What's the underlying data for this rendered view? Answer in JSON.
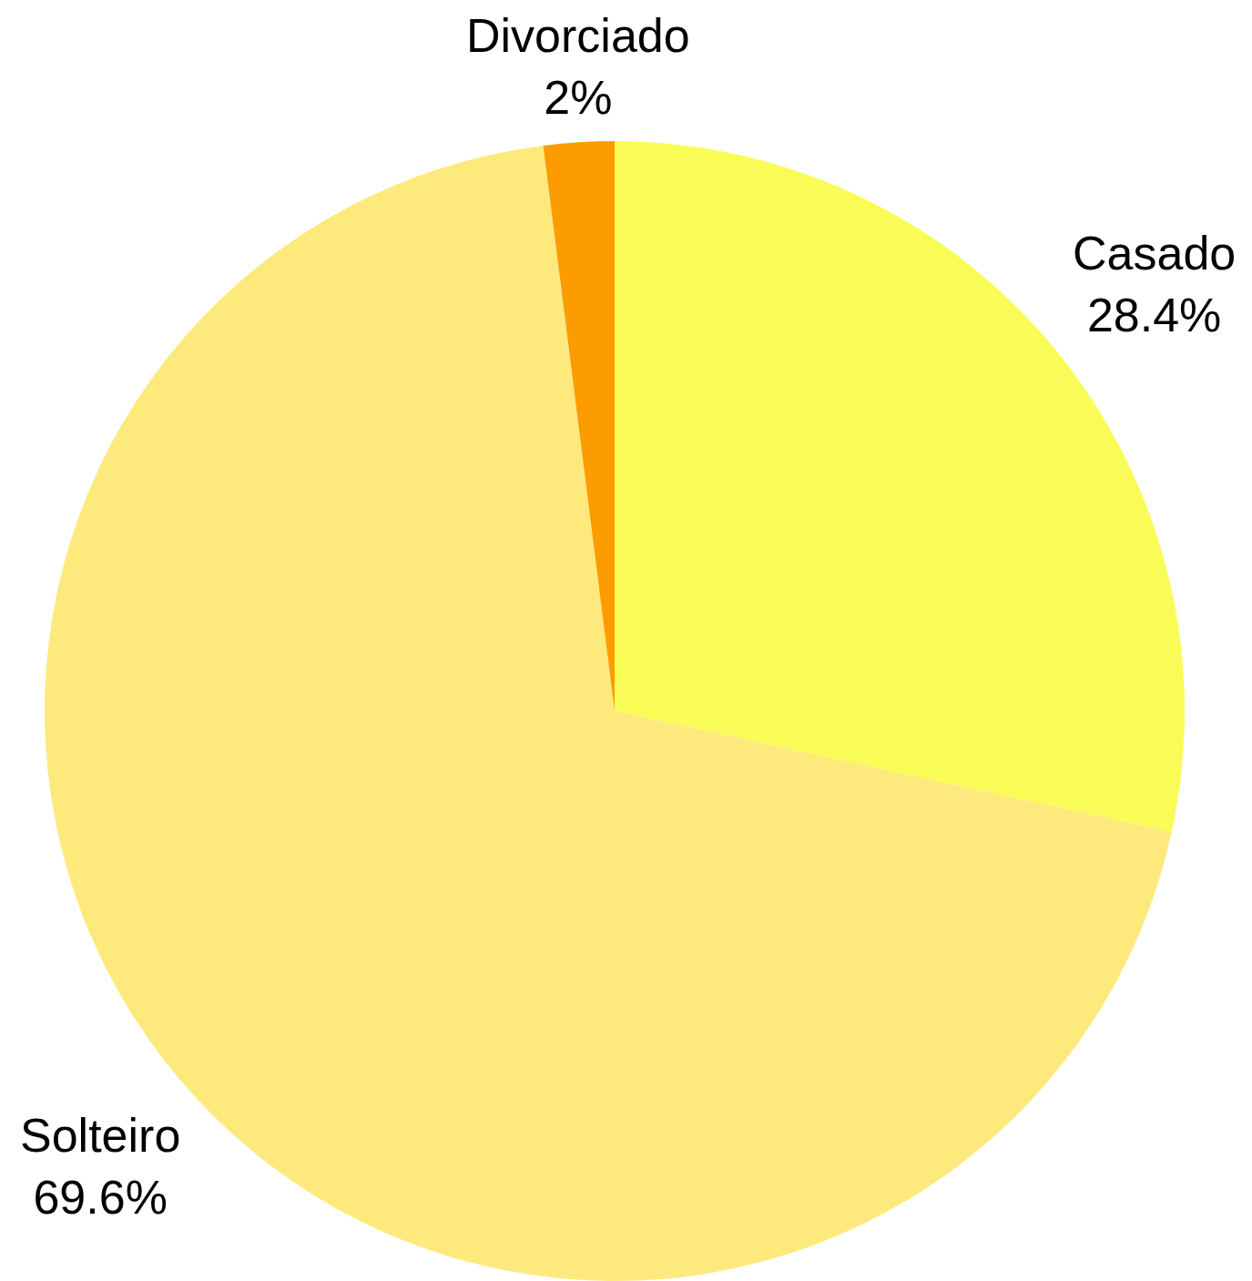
{
  "chart_data": {
    "type": "pie",
    "categories": [
      "Casado",
      "Solteiro",
      "Divorciado"
    ],
    "values": [
      28.4,
      69.6,
      2
    ],
    "value_labels": [
      "28.4%",
      "69.6%",
      "2%"
    ],
    "colors": [
      "#f9fc57",
      "#fee97c",
      "#fd9c00"
    ]
  }
}
